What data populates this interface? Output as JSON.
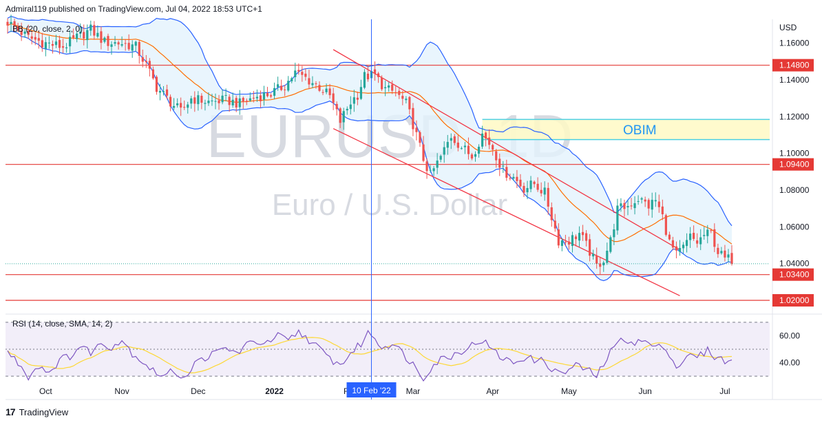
{
  "header": {
    "publisher_line": "Admiral119 published on TradingView.com, Jul 04, 2022 18:53 UTC+1"
  },
  "footer": {
    "brand": "TradingView",
    "logo_glyph": "17"
  },
  "colors": {
    "up": "#26a69a",
    "down": "#ef5350",
    "bb_band": "#2962ff",
    "bb_basis": "#ff6d00",
    "bb_fill": "#e3f2fd",
    "h_line": "#e53935",
    "channel": "#f23645",
    "crosshair": "#2962ff",
    "rsi_line": "#7e57c2",
    "rsi_sma": "#fdd835",
    "rsi_fill": "#ede7f6",
    "obim_fill": "#fff9c4",
    "obim_border": "#4dd0e1",
    "obim_text": "#2196f3",
    "watermark": "#d1d4dc"
  },
  "watermark": {
    "symbol": "EURUSD, 1D",
    "name": "Euro / U.S. Dollar"
  },
  "indicators": {
    "bb_label": "BB (20, close, 2, 0)",
    "rsi_label": "RSI (14, close, SMA, 14, 2)"
  },
  "chart_data": {
    "type": "candlestick",
    "symbol": "EURUSD",
    "timeframe": "1D",
    "currency_label": "USD",
    "price_range": [
      1.014,
      1.173
    ],
    "price_ticks": [
      "1.16000",
      "1.14000",
      "1.12000",
      "1.10000",
      "1.08000",
      "1.06000",
      "1.04000",
      "1.02000"
    ],
    "price_tick_values": [
      1.16,
      1.14,
      1.12,
      1.1,
      1.08,
      1.06,
      1.04,
      1.02
    ],
    "time_labels": [
      "Oct",
      "Nov",
      "Dec",
      "2022",
      "Feb",
      "Mar",
      "Apr",
      "May",
      "Jun",
      "Jul"
    ],
    "time_label_bar_index": [
      11,
      33,
      55,
      77,
      99,
      117,
      140,
      162,
      184,
      207
    ],
    "bar_count": 210,
    "horizontal_levels": [
      {
        "label": "1.14800",
        "value": 1.148
      },
      {
        "label": "1.09400",
        "value": 1.094
      },
      {
        "label": "1.03400",
        "value": 1.034
      },
      {
        "label": "1.02000",
        "value": 1.02
      }
    ],
    "zones": [
      {
        "label": "OBIM",
        "from_bar": 137,
        "to_bar": 222,
        "top": 1.1185,
        "bottom": 1.1075
      }
    ],
    "channel_lines": [
      {
        "from": [
          94,
          1.1565
        ],
        "to": [
          194,
          1.0475
        ]
      },
      {
        "from": [
          94,
          1.1135
        ],
        "to": [
          194,
          1.0225
        ]
      }
    ],
    "crosshair": {
      "bar_index": 105,
      "date_label": "10 Feb '22"
    },
    "anchors_close": [
      [
        0,
        1.1715
      ],
      [
        6,
        1.163
      ],
      [
        11,
        1.16
      ],
      [
        16,
        1.158
      ],
      [
        20,
        1.163
      ],
      [
        24,
        1.1675
      ],
      [
        28,
        1.1605
      ],
      [
        33,
        1.16
      ],
      [
        37,
        1.158
      ],
      [
        40,
        1.148
      ],
      [
        43,
        1.136
      ],
      [
        47,
        1.128
      ],
      [
        50,
        1.1225
      ],
      [
        53,
        1.13
      ],
      [
        58,
        1.128
      ],
      [
        63,
        1.129
      ],
      [
        67,
        1.127
      ],
      [
        72,
        1.131
      ],
      [
        76,
        1.1325
      ],
      [
        80,
        1.137
      ],
      [
        83,
        1.144
      ],
      [
        86,
        1.141
      ],
      [
        90,
        1.136
      ],
      [
        93,
        1.131
      ],
      [
        96,
        1.1175
      ],
      [
        99,
        1.128
      ],
      [
        101,
        1.132
      ],
      [
        103,
        1.142
      ],
      [
        106,
        1.1425
      ],
      [
        109,
        1.135
      ],
      [
        112,
        1.133
      ],
      [
        115,
        1.127
      ],
      [
        117,
        1.116
      ],
      [
        120,
        1.097
      ],
      [
        122,
        1.088
      ],
      [
        125,
        1.098
      ],
      [
        128,
        1.1095
      ],
      [
        131,
        1.1035
      ],
      [
        134,
        1.0985
      ],
      [
        137,
        1.1105
      ],
      [
        140,
        1.103
      ],
      [
        143,
        1.0905
      ],
      [
        146,
        1.087
      ],
      [
        149,
        1.081
      ],
      [
        152,
        1.0835
      ],
      [
        155,
        1.0785
      ],
      [
        157,
        1.0655
      ],
      [
        159,
        1.0525
      ],
      [
        162,
        1.0525
      ],
      [
        165,
        1.0565
      ],
      [
        168,
        1.0465
      ],
      [
        170,
        1.0385
      ],
      [
        172,
        1.0425
      ],
      [
        174,
        1.0525
      ],
      [
        176,
        1.0695
      ],
      [
        179,
        1.0715
      ],
      [
        182,
        1.0755
      ],
      [
        185,
        1.0715
      ],
      [
        187,
        1.0745
      ],
      [
        189,
        1.0655
      ],
      [
        191,
        1.0515
      ],
      [
        193,
        1.0445
      ],
      [
        195,
        1.0485
      ],
      [
        197,
        1.0545
      ],
      [
        199,
        1.0515
      ],
      [
        201,
        1.0555
      ],
      [
        203,
        1.0565
      ],
      [
        205,
        1.0465
      ],
      [
        207,
        1.0425
      ],
      [
        209,
        1.0425
      ]
    ],
    "rsi": {
      "range": [
        27,
        73
      ],
      "levels": [
        70,
        50,
        30
      ],
      "ticks": [
        "60.00",
        "40.00"
      ],
      "tick_values": [
        60,
        40
      ],
      "anchors": [
        [
          0,
          48
        ],
        [
          3,
          40
        ],
        [
          6,
          30
        ],
        [
          9,
          38
        ],
        [
          12,
          33
        ],
        [
          15,
          42
        ],
        [
          18,
          45
        ],
        [
          21,
          52
        ],
        [
          24,
          48
        ],
        [
          27,
          54
        ],
        [
          30,
          52
        ],
        [
          33,
          57
        ],
        [
          36,
          47
        ],
        [
          39,
          41
        ],
        [
          42,
          34
        ],
        [
          45,
          30
        ],
        [
          48,
          34
        ],
        [
          51,
          29
        ],
        [
          54,
          39
        ],
        [
          57,
          44
        ],
        [
          60,
          47
        ],
        [
          63,
          51
        ],
        [
          66,
          47
        ],
        [
          69,
          53
        ],
        [
          72,
          56
        ],
        [
          75,
          54
        ],
        [
          78,
          60
        ],
        [
          81,
          56
        ],
        [
          84,
          63
        ],
        [
          87,
          57
        ],
        [
          90,
          50
        ],
        [
          93,
          43
        ],
        [
          96,
          38
        ],
        [
          99,
          47
        ],
        [
          102,
          54
        ],
        [
          104,
          62
        ],
        [
          106,
          59
        ],
        [
          108,
          51
        ],
        [
          111,
          55
        ],
        [
          114,
          47
        ],
        [
          117,
          39
        ],
        [
          120,
          29
        ],
        [
          122,
          36
        ],
        [
          125,
          43
        ],
        [
          128,
          45
        ],
        [
          131,
          49
        ],
        [
          134,
          53
        ],
        [
          137,
          57
        ],
        [
          140,
          49
        ],
        [
          143,
          43
        ],
        [
          146,
          40
        ],
        [
          149,
          44
        ],
        [
          152,
          42
        ],
        [
          155,
          41
        ],
        [
          158,
          33
        ],
        [
          161,
          33
        ],
        [
          164,
          38
        ],
        [
          167,
          35
        ],
        [
          170,
          30
        ],
        [
          172,
          39
        ],
        [
          175,
          52
        ],
        [
          178,
          58
        ],
        [
          181,
          55
        ],
        [
          184,
          56
        ],
        [
          187,
          51
        ],
        [
          190,
          52
        ],
        [
          193,
          36
        ],
        [
          196,
          45
        ],
        [
          199,
          44
        ],
        [
          202,
          49
        ],
        [
          205,
          43
        ],
        [
          207,
          42
        ],
        [
          209,
          40
        ]
      ]
    }
  }
}
